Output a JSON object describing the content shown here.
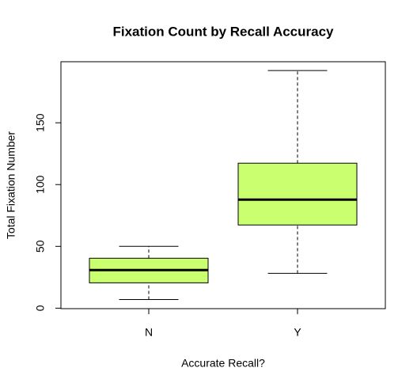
{
  "chart_data": {
    "type": "box",
    "title": "Fixation Count by Recall Accuracy",
    "xlabel": "Accurate Recall?",
    "ylabel": "Total Fixation Number",
    "categories": [
      "N",
      "Y"
    ],
    "values": [
      {
        "min": 7,
        "q1": 20.5,
        "median": 30.8,
        "q3": 40.4,
        "max": 50
      },
      {
        "min": 28.2,
        "q1": 67.3,
        "median": 87.8,
        "q3": 117.3,
        "max": 192.3
      }
    ],
    "color": "#caff70",
    "ylim": [
      -0.4,
      199.4
    ],
    "yticks": [
      0,
      50,
      100,
      150
    ]
  }
}
